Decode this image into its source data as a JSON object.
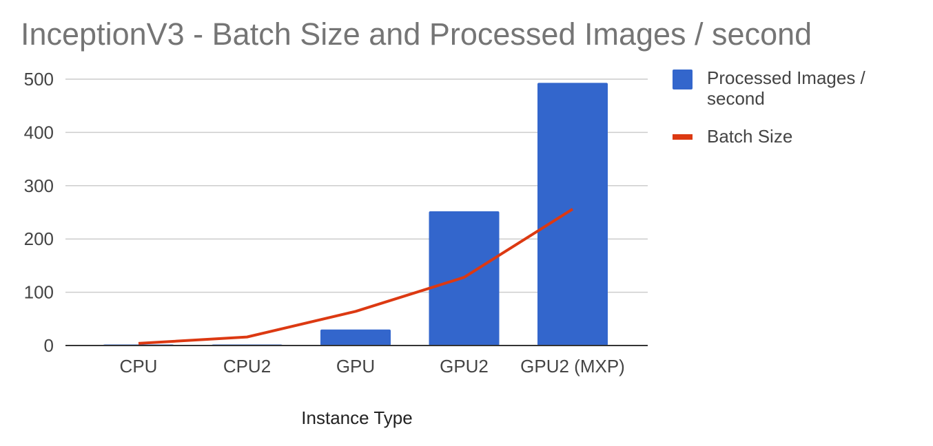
{
  "chart_data": {
    "type": "bar",
    "title": "InceptionV3 - Batch Size and Processed Images / second",
    "xlabel": "Instance Type",
    "ylabel": "",
    "categories": [
      "CPU",
      "CPU2",
      "GPU",
      "GPU2",
      "GPU2 (MXP)"
    ],
    "ylim": [
      0,
      500
    ],
    "yticks": [
      "0",
      "100",
      "200",
      "300",
      "400",
      "500"
    ],
    "grid": true,
    "legend_position": "right",
    "series": [
      {
        "name": "Processed Images / second",
        "legend_lines": [
          "Processed Images /",
          "second"
        ],
        "type": "bar",
        "color": "#3366cc",
        "values": [
          2,
          2,
          30,
          252,
          493
        ]
      },
      {
        "name": "Batch Size",
        "legend_lines": [
          "Batch Size"
        ],
        "type": "line",
        "color": "#dc3912",
        "values": [
          4,
          16,
          64,
          128,
          256
        ]
      }
    ]
  }
}
